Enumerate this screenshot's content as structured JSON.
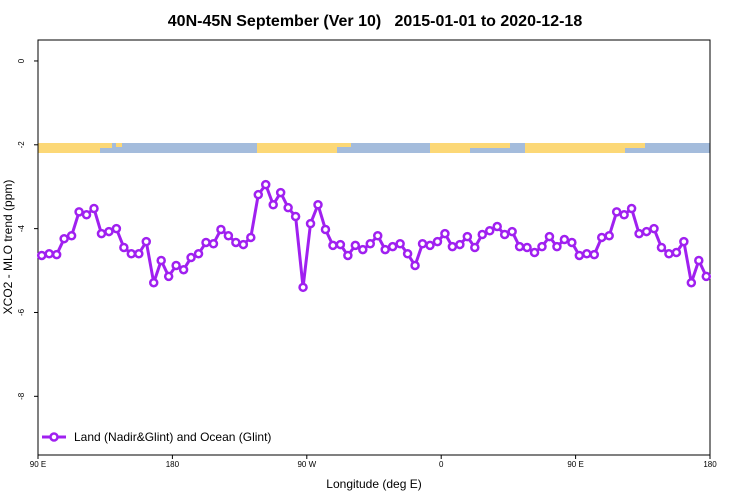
{
  "chart_data": {
    "type": "line",
    "title": "40N-45N September (Ver 10)   2015-01-01 to 2020-12-18",
    "x_label": "Longitude (deg E)",
    "y_label": "XCO2 - MLO trend (ppm)",
    "xlim": [
      90,
      540
    ],
    "xticks": [
      {
        "value": 90,
        "label": "90 E"
      },
      {
        "value": 180,
        "label": "180"
      },
      {
        "value": 270,
        "label": "90 W"
      },
      {
        "value": 360,
        "label": "0"
      },
      {
        "value": 450,
        "label": "90 E"
      },
      {
        "value": 540,
        "label": "180"
      }
    ],
    "ylim": [
      -9.4,
      0.5
    ],
    "yticks": [
      0,
      -2,
      -4,
      -6,
      -8
    ],
    "legend": "bottom-left",
    "x": [
      92.5,
      97.5,
      102.5,
      107.5,
      112.5,
      117.5,
      122.5,
      127.5,
      132.5,
      137.5,
      142.5,
      147.5,
      152.5,
      157.5,
      162.5,
      167.5,
      172.5,
      177.5,
      182.5,
      187.5,
      192.5,
      197.5,
      202.5,
      207.5,
      212.5,
      217.5,
      222.5,
      227.5,
      232.5,
      237.5,
      242.5,
      247.5,
      252.5,
      257.5,
      262.5,
      267.5,
      272.5,
      277.5,
      282.5,
      287.5,
      292.5,
      297.5,
      302.5,
      307.5,
      312.5,
      317.5,
      322.5,
      327.5,
      332.5,
      337.5,
      342.5,
      347.5,
      352.5,
      357.5,
      362.5,
      367.5,
      372.5,
      377.5,
      382.5,
      387.5,
      392.5,
      397.5,
      402.5,
      407.5,
      412.5,
      417.5,
      422.5,
      427.5,
      432.5,
      437.5,
      442.5,
      447.5,
      452.5,
      457.5,
      462.5,
      467.5,
      472.5,
      477.5,
      482.5,
      487.5,
      492.5,
      497.5,
      502.5,
      507.5,
      512.5,
      517.5,
      522.5,
      527.5,
      532.5,
      537.5
    ],
    "series": [
      {
        "name": "Land (Nadir&Glint) and Ocean (Glint)",
        "color": "#a020f0",
        "values": [
          -4.64,
          -4.6,
          -4.62,
          -4.24,
          -4.17,
          -3.6,
          -3.67,
          -3.52,
          -4.12,
          -4.07,
          -4.0,
          -4.45,
          -4.6,
          -4.6,
          -4.31,
          -5.29,
          -4.76,
          -5.14,
          -4.88,
          -4.98,
          -4.69,
          -4.6,
          -4.33,
          -4.36,
          -4.02,
          -4.17,
          -4.33,
          -4.38,
          -4.21,
          -3.19,
          -2.95,
          -3.43,
          -3.14,
          -3.5,
          -3.71,
          -5.4,
          -3.88,
          -3.43,
          -4.02,
          -4.4,
          -4.38,
          -4.64,
          -4.4,
          -4.5,
          -4.36,
          -4.17,
          -4.5,
          -4.43,
          -4.36,
          -4.6,
          -4.88,
          -4.36,
          -4.4,
          -4.31,
          -4.12,
          -4.43,
          -4.38,
          -4.19,
          -4.45,
          -4.14,
          -4.05,
          -3.95,
          -4.14,
          -4.07,
          -4.43,
          -4.45,
          -4.57,
          -4.43,
          -4.19,
          -4.43,
          -4.26,
          -4.33,
          -4.64,
          -4.6,
          -4.62,
          -4.21,
          -4.17,
          -3.6,
          -3.67,
          -3.52,
          -4.12,
          -4.07,
          -4.0,
          -4.45,
          -4.6,
          -4.57,
          -4.31,
          -5.29,
          -4.76,
          -5.14
        ]
      }
    ]
  }
}
